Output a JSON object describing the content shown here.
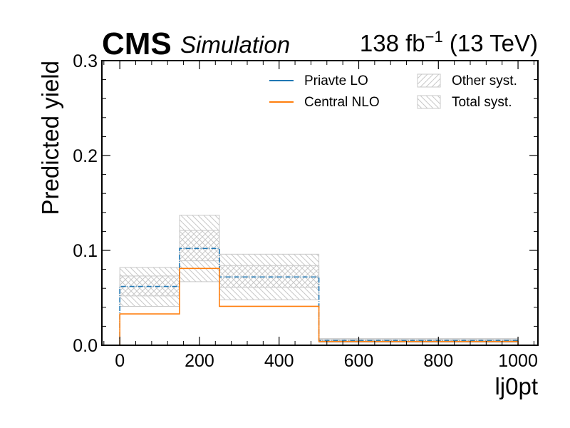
{
  "header": {
    "experiment": "CMS",
    "label": "Simulation",
    "lumi": "138 fb",
    "lumi_exp": "−1",
    "energy": " (13 TeV)"
  },
  "chart_data": {
    "type": "histogram",
    "xlabel": "lj0pt",
    "ylabel": "Predicted yield",
    "xlim": [
      -45,
      1050
    ],
    "ylim": [
      0,
      0.3
    ],
    "xticks": [
      0,
      200,
      400,
      600,
      800,
      1000
    ],
    "yticks": [
      0.0,
      0.1,
      0.2,
      0.3
    ],
    "ytick_labels": [
      "0.0",
      "0.1",
      "0.2",
      "0.3"
    ],
    "bin_edges": [
      0,
      150,
      250,
      500,
      1000
    ],
    "series": [
      {
        "name": "Priavte LO",
        "values": [
          0.062,
          0.102,
          0.072,
          0.005
        ],
        "color": "#1f77b4",
        "style": "dashed"
      },
      {
        "name": "Central NLO",
        "values": [
          0.033,
          0.081,
          0.041,
          0.004
        ],
        "color": "#ff7f0e",
        "style": "solid"
      }
    ],
    "bands": [
      {
        "name": "Other syst.",
        "hatch": "forward",
        "low": [
          0.052,
          0.089,
          0.061,
          0.004
        ],
        "high": [
          0.073,
          0.121,
          0.084,
          0.006
        ]
      },
      {
        "name": "Total syst.",
        "hatch": "backward",
        "low": [
          0.041,
          0.067,
          0.048,
          0.003
        ],
        "high": [
          0.082,
          0.137,
          0.096,
          0.007
        ]
      }
    ],
    "legend_position": "top-right",
    "grid": false,
    "colors": {
      "band": "#c8c8c8",
      "axis": "#000000"
    }
  }
}
